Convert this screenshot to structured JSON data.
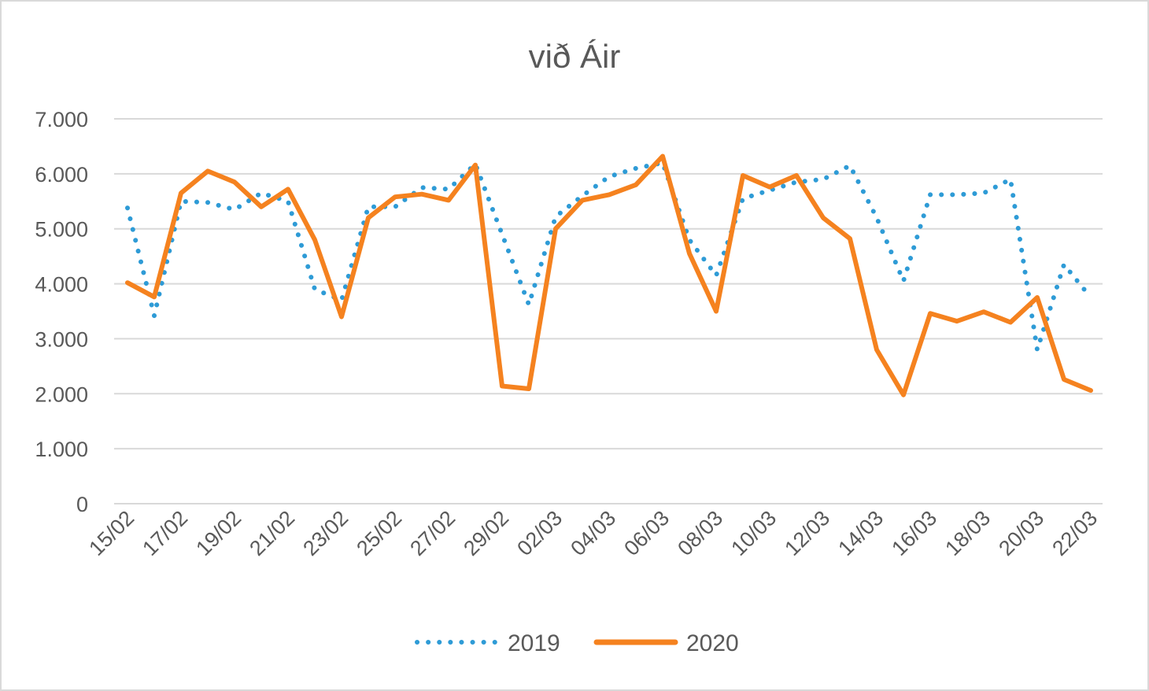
{
  "chart_data": {
    "type": "line",
    "title": "við Áir",
    "xlabel": "",
    "ylabel": "",
    "ylim": [
      0,
      7000
    ],
    "yticks": [
      0,
      1000,
      2000,
      3000,
      4000,
      5000,
      6000,
      7000
    ],
    "ytick_labels": [
      "0",
      "1.000",
      "2.000",
      "3.000",
      "4.000",
      "5.000",
      "6.000",
      "7.000"
    ],
    "grid": true,
    "legend": "bottom",
    "x": [
      "15/02",
      "16/02",
      "17/02",
      "18/02",
      "19/02",
      "20/02",
      "21/02",
      "22/02",
      "23/02",
      "24/02",
      "25/02",
      "26/02",
      "27/02",
      "28/02",
      "29/02",
      "01/03",
      "02/03",
      "03/03",
      "04/03",
      "05/03",
      "06/03",
      "07/03",
      "08/03",
      "09/03",
      "10/03",
      "11/03",
      "12/03",
      "13/03",
      "14/03",
      "15/03",
      "16/03",
      "17/03",
      "18/03",
      "19/03",
      "20/03",
      "21/03",
      "22/03"
    ],
    "xtick_labels": [
      "15/02",
      "17/02",
      "19/02",
      "21/02",
      "23/02",
      "25/02",
      "27/02",
      "29/02",
      "02/03",
      "04/03",
      "06/03",
      "08/03",
      "10/03",
      "12/03",
      "14/03",
      "16/03",
      "18/03",
      "20/03",
      "22/03"
    ],
    "series": [
      {
        "name": "2019",
        "color": "#2e9bd6",
        "style": "dotted",
        "values": [
          5380,
          3420,
          5500,
          5480,
          5350,
          5650,
          5500,
          3900,
          3700,
          5400,
          5400,
          5750,
          5720,
          6180,
          4900,
          3620,
          5220,
          5600,
          5950,
          6100,
          6200,
          4800,
          4150,
          5550,
          5700,
          5850,
          5900,
          6150,
          5200,
          4050,
          5620,
          5620,
          5650,
          5900,
          2800,
          4350,
          3750
        ]
      },
      {
        "name": "2020",
        "color": "#f5821f",
        "style": "solid",
        "values": [
          4020,
          3760,
          5650,
          6050,
          5850,
          5400,
          5720,
          4800,
          3400,
          5200,
          5580,
          5630,
          5520,
          6160,
          2140,
          2090,
          5000,
          5520,
          5620,
          5800,
          6320,
          4550,
          3500,
          5970,
          5760,
          5970,
          5200,
          4820,
          2800,
          1980,
          3460,
          3320,
          3490,
          3300,
          3750,
          2260,
          2060
        ]
      }
    ]
  }
}
